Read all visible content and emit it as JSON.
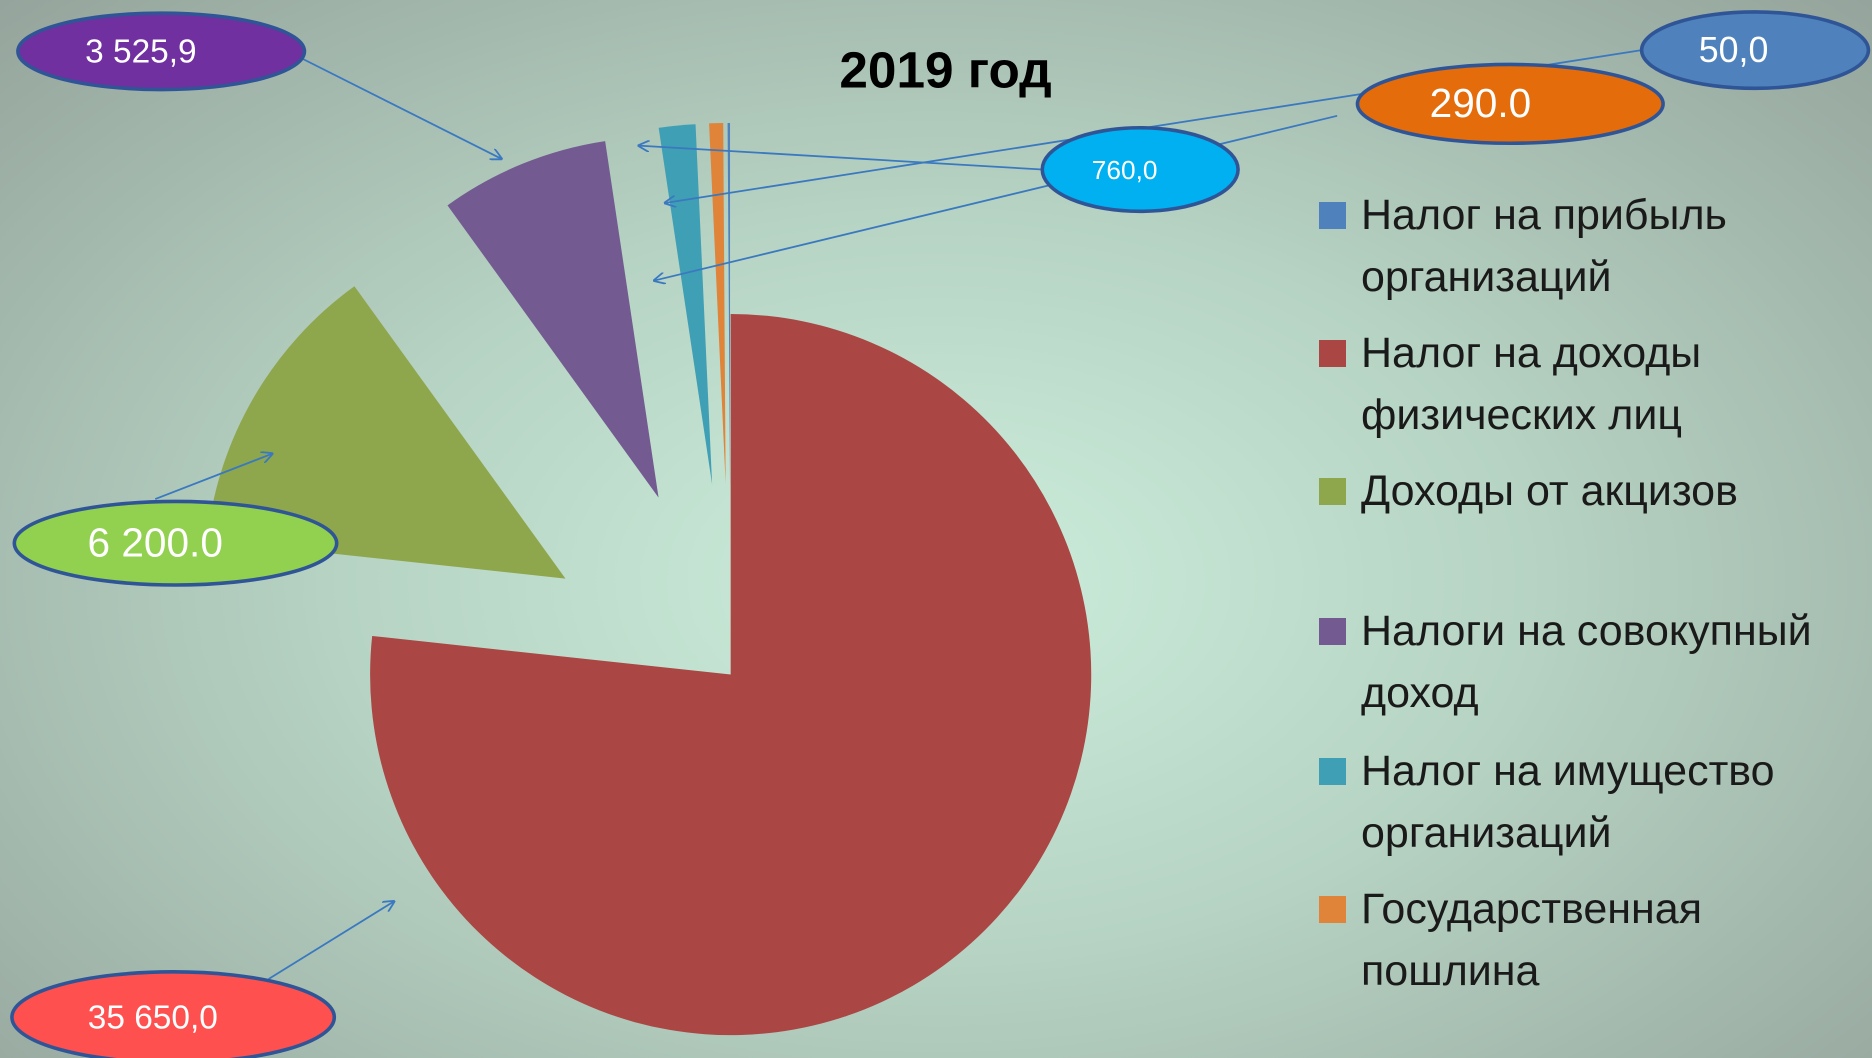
{
  "chart_data": {
    "type": "pie",
    "title": "2019 год",
    "series": [
      {
        "name": "Налог на прибыль организаций",
        "color": "#4f81bd",
        "values": [
          50.0
        ],
        "value_labels": [
          "50,0"
        ],
        "label_color": "#4f81bd"
      },
      {
        "name": "Налог на доходы физических лиц",
        "color": "#aa4644",
        "values": [
          35650.0
        ],
        "value_labels": [
          "35 650,0"
        ],
        "label_color": "#ff5050"
      },
      {
        "name": "Доходы от акцизов",
        "color": "#8ea64c",
        "values": [
          6200.0
        ],
        "value_labels": [
          "6 200.0"
        ],
        "label_color": "#92d050"
      },
      {
        "name": "Налоги на совокупный доход",
        "color": "#735a91",
        "values": [
          3525.9
        ],
        "value_labels": [
          "3 525,9"
        ],
        "label_color": "#7030a0"
      },
      {
        "name": "Налог на имущество организаций",
        "color": "#3f9fb5",
        "values": [
          760.0
        ],
        "value_labels": [
          "760,0"
        ],
        "label_color": "#00b0f0"
      },
      {
        "name": "Государственная пошлина",
        "color": "#e0843a",
        "values": [
          290.0
        ],
        "value_labels": [
          "290.0"
        ],
        "label_color": "#e46c0a"
      }
    ],
    "legend": "right"
  }
}
